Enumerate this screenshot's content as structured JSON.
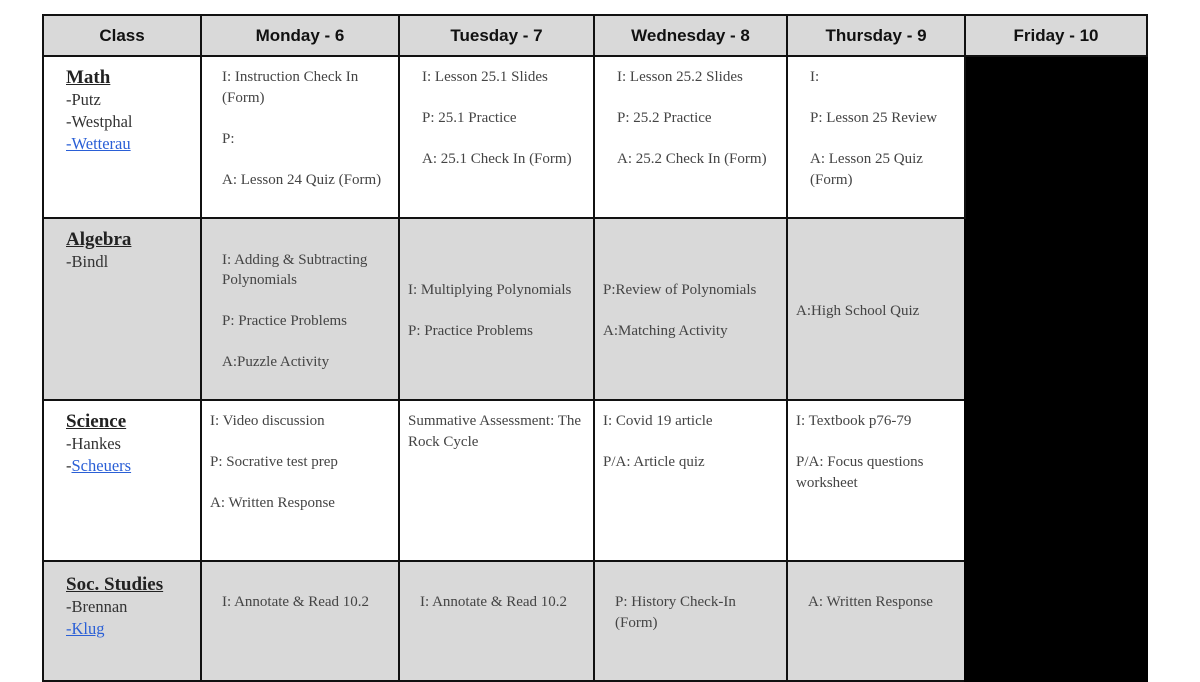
{
  "headers": [
    "Class",
    "Monday - 6",
    "Tuesday - 7",
    "Wednesday - 8",
    "Thursday - 9",
    "Friday - 10"
  ],
  "rows": [
    {
      "name": "Math",
      "teachers": [
        {
          "text": "-Putz",
          "link": false
        },
        {
          "text": "-Westphal",
          "link": false
        },
        {
          "text": "-Wetterau",
          "link": true
        }
      ],
      "cells": [
        [
          "I: Instruction Check In (Form)",
          "P:",
          "A: Lesson 24 Quiz (Form)"
        ],
        [
          "I: Lesson 25.1 Slides",
          "P: 25.1 Practice",
          "A: 25.1 Check In (Form)"
        ],
        [
          "I: Lesson 25.2 Slides",
          "P: 25.2 Practice",
          "A: 25.2 Check In (Form)"
        ],
        [
          "I:",
          "P: Lesson 25 Review",
          "A: Lesson 25 Quiz (Form)"
        ]
      ]
    },
    {
      "name": "Algebra",
      "teachers": [
        {
          "text": "-Bindl",
          "link": false
        }
      ],
      "cells": [
        [
          "I: Adding & Subtracting Polynomials",
          "P: Practice Problems",
          "A:Puzzle Activity"
        ],
        [
          "I: Multiplying Polynomials",
          "P: Practice Problems"
        ],
        [
          "P:Review of Polynomials",
          "A:Matching Activity"
        ],
        [
          "A:High School Quiz"
        ]
      ]
    },
    {
      "name": "Science",
      "teachers": [
        {
          "text": "-Hankes",
          "link": false
        },
        {
          "text": "Scheuers",
          "link": true,
          "prefix": "-"
        }
      ],
      "cells": [
        [
          "I: Video discussion",
          "P: Socrative test prep",
          "A: Written Response"
        ],
        [
          "Summative Assessment: The Rock Cycle"
        ],
        [
          "I: Covid 19 article",
          "P/A: Article quiz"
        ],
        [
          "I: Textbook p76-79",
          "P/A: Focus questions worksheet"
        ]
      ]
    },
    {
      "name": "Soc. Studies",
      "teachers": [
        {
          "text": "-Brennan",
          "link": false
        },
        {
          "text": "-Klug",
          "link": true
        }
      ],
      "cells": [
        [
          "I: Annotate & Read 10.2"
        ],
        [
          "I: Annotate & Read 10.2"
        ],
        [
          "P: History Check-In (Form)"
        ],
        [
          "A: Written Response"
        ]
      ]
    }
  ]
}
